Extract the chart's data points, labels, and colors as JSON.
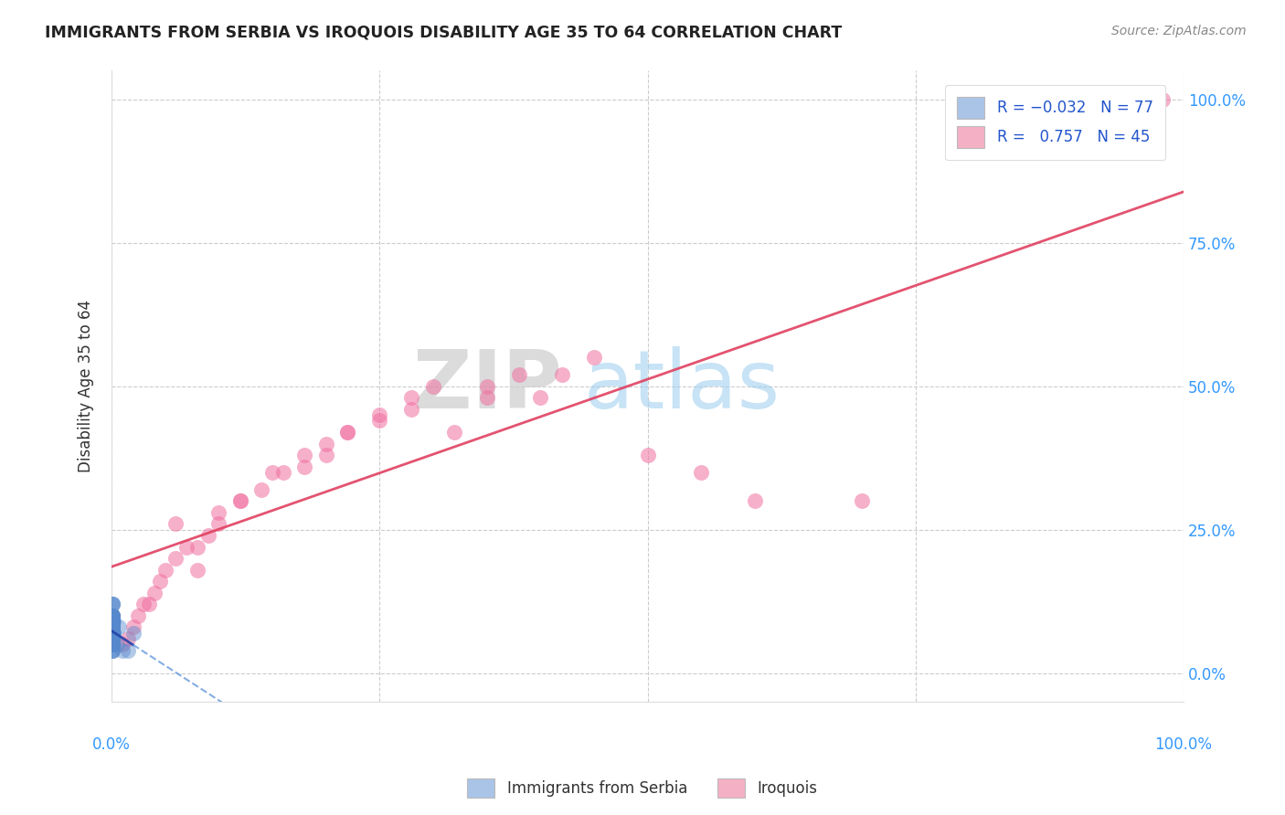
{
  "title": "IMMIGRANTS FROM SERBIA VS IROQUOIS DISABILITY AGE 35 TO 64 CORRELATION CHART",
  "source": "Source: ZipAtlas.com",
  "ylabel": "Disability Age 35 to 64",
  "ylabel_right_ticks": [
    "0.0%",
    "25.0%",
    "50.0%",
    "75.0%",
    "100.0%"
  ],
  "ylabel_right_values": [
    0,
    25,
    50,
    75,
    100
  ],
  "xmin": 0,
  "xmax": 100,
  "ymin": -5,
  "ymax": 105,
  "r_serbia": -0.032,
  "n_serbia": 77,
  "r_iroquois": 0.757,
  "n_iroquois": 45,
  "watermark_zip": "ZIP",
  "watermark_atlas": "atlas",
  "legend_serbia_color": "#aac4e8",
  "legend_iroquois_color": "#f4b0c4",
  "serbia_dot_color": "#5588cc",
  "iroquois_dot_color": "#f070a0",
  "serbia_line_solid_color": "#2244aa",
  "serbia_line_dash_color": "#6699dd",
  "iroquois_line_color": "#e04060",
  "serbia_x": [
    0.05,
    0.08,
    0.1,
    0.12,
    0.15,
    0.08,
    0.1,
    0.12,
    0.05,
    0.08,
    0.1,
    0.12,
    0.15,
    0.08,
    0.1,
    0.05,
    0.08,
    0.1,
    0.12,
    0.08,
    0.1,
    0.12,
    0.05,
    0.08,
    0.1,
    0.08,
    0.1,
    0.12,
    0.05,
    0.08,
    0.1,
    0.12,
    0.08,
    0.1,
    0.05,
    0.08,
    0.1,
    0.12,
    0.08,
    0.1,
    0.15,
    0.08,
    0.1,
    0.12,
    0.05,
    0.1,
    0.08,
    0.5,
    0.7,
    1.0,
    0.1,
    0.08,
    0.1,
    0.12,
    0.08,
    0.1,
    0.08,
    0.1,
    0.12,
    0.05,
    0.08,
    0.1,
    1.5,
    2.0,
    0.1,
    0.12,
    0.05,
    0.08,
    0.1,
    0.08,
    0.1,
    0.12,
    0.05,
    0.08,
    0.1,
    0.12,
    0.1
  ],
  "serbia_y": [
    5,
    8,
    6,
    10,
    7,
    9,
    12,
    5,
    8,
    6,
    4,
    7,
    9,
    5,
    8,
    6,
    10,
    7,
    5,
    8,
    4,
    6,
    7,
    9,
    5,
    12,
    8,
    6,
    10,
    7,
    5,
    8,
    6,
    10,
    7,
    9,
    5,
    8,
    6,
    4,
    7,
    9,
    5,
    8,
    6,
    10,
    7,
    5,
    8,
    4,
    6,
    7,
    9,
    5,
    12,
    8,
    6,
    10,
    7,
    5,
    8,
    6,
    4,
    7,
    9,
    5,
    8,
    6,
    10,
    7,
    5,
    8,
    6,
    10,
    7,
    9,
    5
  ],
  "iroquois_x": [
    1.0,
    2.0,
    1.5,
    3.0,
    2.5,
    4.0,
    3.5,
    5.0,
    4.5,
    6.0,
    7.0,
    8.0,
    6.0,
    9.0,
    10.0,
    8.0,
    12.0,
    10.0,
    15.0,
    12.0,
    14.0,
    18.0,
    16.0,
    20.0,
    22.0,
    18.0,
    25.0,
    20.0,
    28.0,
    22.0,
    30.0,
    25.0,
    35.0,
    28.0,
    38.0,
    32.0,
    42.0,
    35.0,
    45.0,
    40.0,
    50.0,
    55.0,
    60.0,
    70.0,
    98.0
  ],
  "iroquois_y": [
    5,
    8,
    6,
    12,
    10,
    14,
    12,
    18,
    16,
    20,
    22,
    18,
    26,
    24,
    28,
    22,
    30,
    26,
    35,
    30,
    32,
    38,
    35,
    40,
    42,
    36,
    45,
    38,
    48,
    42,
    50,
    44,
    48,
    46,
    52,
    42,
    52,
    50,
    55,
    48,
    38,
    35,
    30,
    30,
    100
  ],
  "dpi": 100,
  "figsize": [
    14.06,
    8.92
  ],
  "grid_color": "#cccccc",
  "grid_style": "--",
  "plot_yticks": [
    0,
    25,
    50,
    75,
    100
  ],
  "plot_xticks": [
    0,
    25,
    50,
    75,
    100
  ]
}
